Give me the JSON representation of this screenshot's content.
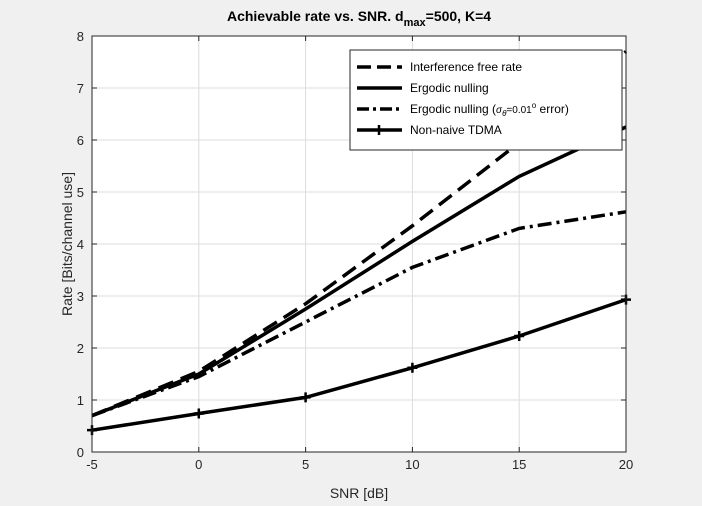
{
  "chart_data": {
    "type": "line",
    "title_prefix": "Achievable rate vs. SNR. d",
    "title_subscript": "max",
    "title_suffix": "=500, K=4",
    "xlabel": "SNR [dB]",
    "ylabel": "Rate [Bits/channel use]",
    "xlim": [
      -5,
      20
    ],
    "ylim": [
      0,
      8
    ],
    "xticks": [
      -5,
      0,
      5,
      10,
      15,
      20
    ],
    "yticks": [
      0,
      1,
      2,
      3,
      4,
      5,
      6,
      7,
      8
    ],
    "grid": true,
    "legend_position": "top-right",
    "x": [
      -5,
      0,
      5,
      10,
      15,
      20
    ],
    "series": [
      {
        "name": "Interference free rate",
        "style": "dashed",
        "marker": "none",
        "values": [
          0.7,
          1.55,
          2.85,
          4.35,
          5.95,
          7.7
        ]
      },
      {
        "name": "Ergodic nulling",
        "style": "solid",
        "marker": "none",
        "values": [
          0.7,
          1.5,
          2.75,
          4.05,
          5.3,
          6.25
        ]
      },
      {
        "name": "Ergodic nulling (σθ=0.01° error)",
        "style": "dashdot",
        "marker": "none",
        "values": [
          0.7,
          1.45,
          2.5,
          3.55,
          4.3,
          4.62
        ]
      },
      {
        "name": "Non-naive TDMA",
        "style": "solid",
        "marker": "plus",
        "values": [
          0.42,
          0.74,
          1.05,
          1.62,
          2.23,
          2.93
        ]
      }
    ],
    "legend": {
      "entries": [
        {
          "label": "Interference free rate"
        },
        {
          "label": "Ergodic nulling"
        },
        {
          "label_prefix": "Ergodic nulling (",
          "label_sigma": "σ",
          "label_theta": "θ",
          "label_mid": "=0.01",
          "label_deg": "o",
          "label_suffix": " error)"
        },
        {
          "label": "Non-naive TDMA"
        }
      ]
    },
    "colors": {
      "line": "#000000",
      "axes_bg": "#ffffff",
      "figure_bg": "#f0f0f0",
      "grid": "#dcdcdc",
      "axis": "#262626"
    }
  }
}
